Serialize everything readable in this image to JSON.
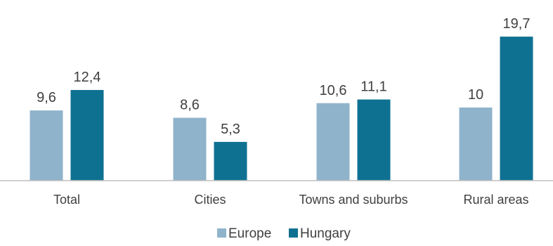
{
  "chart_data": {
    "type": "bar",
    "categories": [
      "Total",
      "Cities",
      "Towns and suburbs",
      "Rural areas"
    ],
    "series": [
      {
        "name": "Europe",
        "values": [
          9.6,
          8.6,
          10.6,
          10
        ],
        "labels": [
          "9,6",
          "8,6",
          "10,6",
          "10"
        ],
        "color": "#8FB3CB"
      },
      {
        "name": "Hungary",
        "values": [
          12.4,
          5.3,
          11.1,
          19.7
        ],
        "labels": [
          "12,4",
          "5,3",
          "11,1",
          "19,7"
        ],
        "color": "#0F7192"
      }
    ],
    "title": "",
    "xlabel": "",
    "ylabel": "",
    "ylim": [
      0,
      20
    ],
    "grid": false,
    "legend": "bottom-center",
    "baseline_color": "#BFBFBF"
  }
}
